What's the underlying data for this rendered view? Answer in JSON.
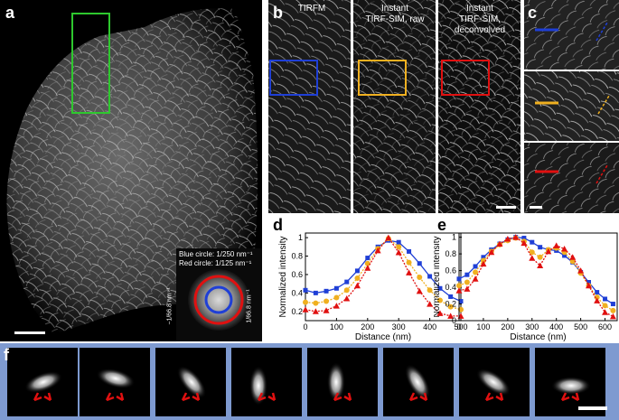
{
  "panel_labels": {
    "a": "a",
    "b": "b",
    "c": "c",
    "d": "d",
    "e": "e",
    "f": "f"
  },
  "panel_b": {
    "columns": [
      "TIRFM",
      "Instant\nTIRF-SIM, raw",
      "Instant\nTIRF-SIM,\ndeconvolved"
    ]
  },
  "inset": {
    "blue_circle": "Blue circle: 1/250 nm⁻¹",
    "red_circle": "Red circle: 1/125 nm⁻¹",
    "left_axis": "−1/66.8 nm⁻¹",
    "right_axis": "1/66.8 nm⁻¹"
  },
  "colors": {
    "blue": "#1f3fd6",
    "orange": "#f0b020",
    "red": "#e01010",
    "green": "#2ec82e",
    "frame_f": "#7e9ad0"
  },
  "chart_data": [
    {
      "type": "line",
      "panel": "d",
      "xlabel": "Distance (nm)",
      "ylabel": "Normalized intensity",
      "xlim": [
        0,
        500
      ],
      "ylim": [
        0.1,
        1.05
      ],
      "xticks": [
        0,
        100,
        200,
        300,
        400,
        500
      ],
      "yticks": [
        0.2,
        0.4,
        0.6,
        0.8,
        1
      ],
      "series": [
        {
          "color": "blue",
          "marker": "square",
          "x": [
            0,
            33,
            67,
            100,
            133,
            167,
            200,
            233,
            267,
            300,
            333,
            367,
            400,
            433,
            467,
            500
          ],
          "y": [
            0.43,
            0.4,
            0.42,
            0.45,
            0.52,
            0.64,
            0.78,
            0.9,
            0.97,
            0.95,
            0.85,
            0.72,
            0.58,
            0.45,
            0.36,
            0.31
          ]
        },
        {
          "color": "orange",
          "marker": "circle",
          "x": [
            0,
            33,
            67,
            100,
            133,
            167,
            200,
            233,
            267,
            300,
            333,
            367,
            400,
            433,
            467,
            500
          ],
          "y": [
            0.3,
            0.29,
            0.31,
            0.35,
            0.43,
            0.56,
            0.72,
            0.88,
            0.99,
            0.9,
            0.73,
            0.57,
            0.43,
            0.32,
            0.25,
            0.22
          ]
        },
        {
          "color": "red",
          "marker": "triangle",
          "x": [
            0,
            33,
            67,
            100,
            133,
            167,
            200,
            233,
            267,
            300,
            333,
            367,
            400,
            433,
            467,
            500
          ],
          "y": [
            0.22,
            0.2,
            0.21,
            0.26,
            0.34,
            0.48,
            0.67,
            0.86,
            1.0,
            0.84,
            0.62,
            0.42,
            0.28,
            0.18,
            0.15,
            0.15
          ]
        }
      ]
    },
    {
      "type": "line",
      "panel": "e",
      "xlabel": "Distance (nm)",
      "ylabel": "Normalized intensity",
      "xlim": [
        0,
        650
      ],
      "ylim": [
        0,
        1.05
      ],
      "xticks": [
        0,
        100,
        200,
        300,
        400,
        500,
        600
      ],
      "yticks": [
        0,
        0.2,
        0.4,
        0.6,
        0.8,
        1
      ],
      "series": [
        {
          "color": "blue",
          "marker": "square",
          "x": [
            0,
            33,
            67,
            100,
            133,
            167,
            200,
            233,
            267,
            300,
            333,
            367,
            400,
            433,
            467,
            500,
            533,
            567,
            600,
            633
          ],
          "y": [
            0.5,
            0.55,
            0.65,
            0.76,
            0.85,
            0.92,
            0.97,
            1.0,
            0.99,
            0.94,
            0.88,
            0.85,
            0.84,
            0.78,
            0.7,
            0.58,
            0.46,
            0.34,
            0.26,
            0.2
          ]
        },
        {
          "color": "orange",
          "marker": "circle",
          "x": [
            0,
            33,
            67,
            100,
            133,
            167,
            200,
            233,
            267,
            300,
            333,
            367,
            400,
            433,
            467,
            500,
            533,
            567,
            600,
            633
          ],
          "y": [
            0.42,
            0.46,
            0.58,
            0.72,
            0.83,
            0.91,
            0.96,
            0.99,
            0.95,
            0.82,
            0.76,
            0.85,
            0.87,
            0.82,
            0.71,
            0.57,
            0.42,
            0.28,
            0.18,
            0.12
          ]
        },
        {
          "color": "red",
          "marker": "triangle",
          "x": [
            0,
            33,
            67,
            100,
            133,
            167,
            200,
            233,
            267,
            300,
            333,
            367,
            400,
            433,
            467,
            500,
            533,
            567,
            600,
            633
          ],
          "y": [
            0.36,
            0.38,
            0.5,
            0.68,
            0.82,
            0.92,
            0.98,
            1.0,
            0.93,
            0.75,
            0.66,
            0.83,
            0.9,
            0.86,
            0.76,
            0.6,
            0.42,
            0.24,
            0.1,
            0.05
          ]
        }
      ]
    }
  ]
}
